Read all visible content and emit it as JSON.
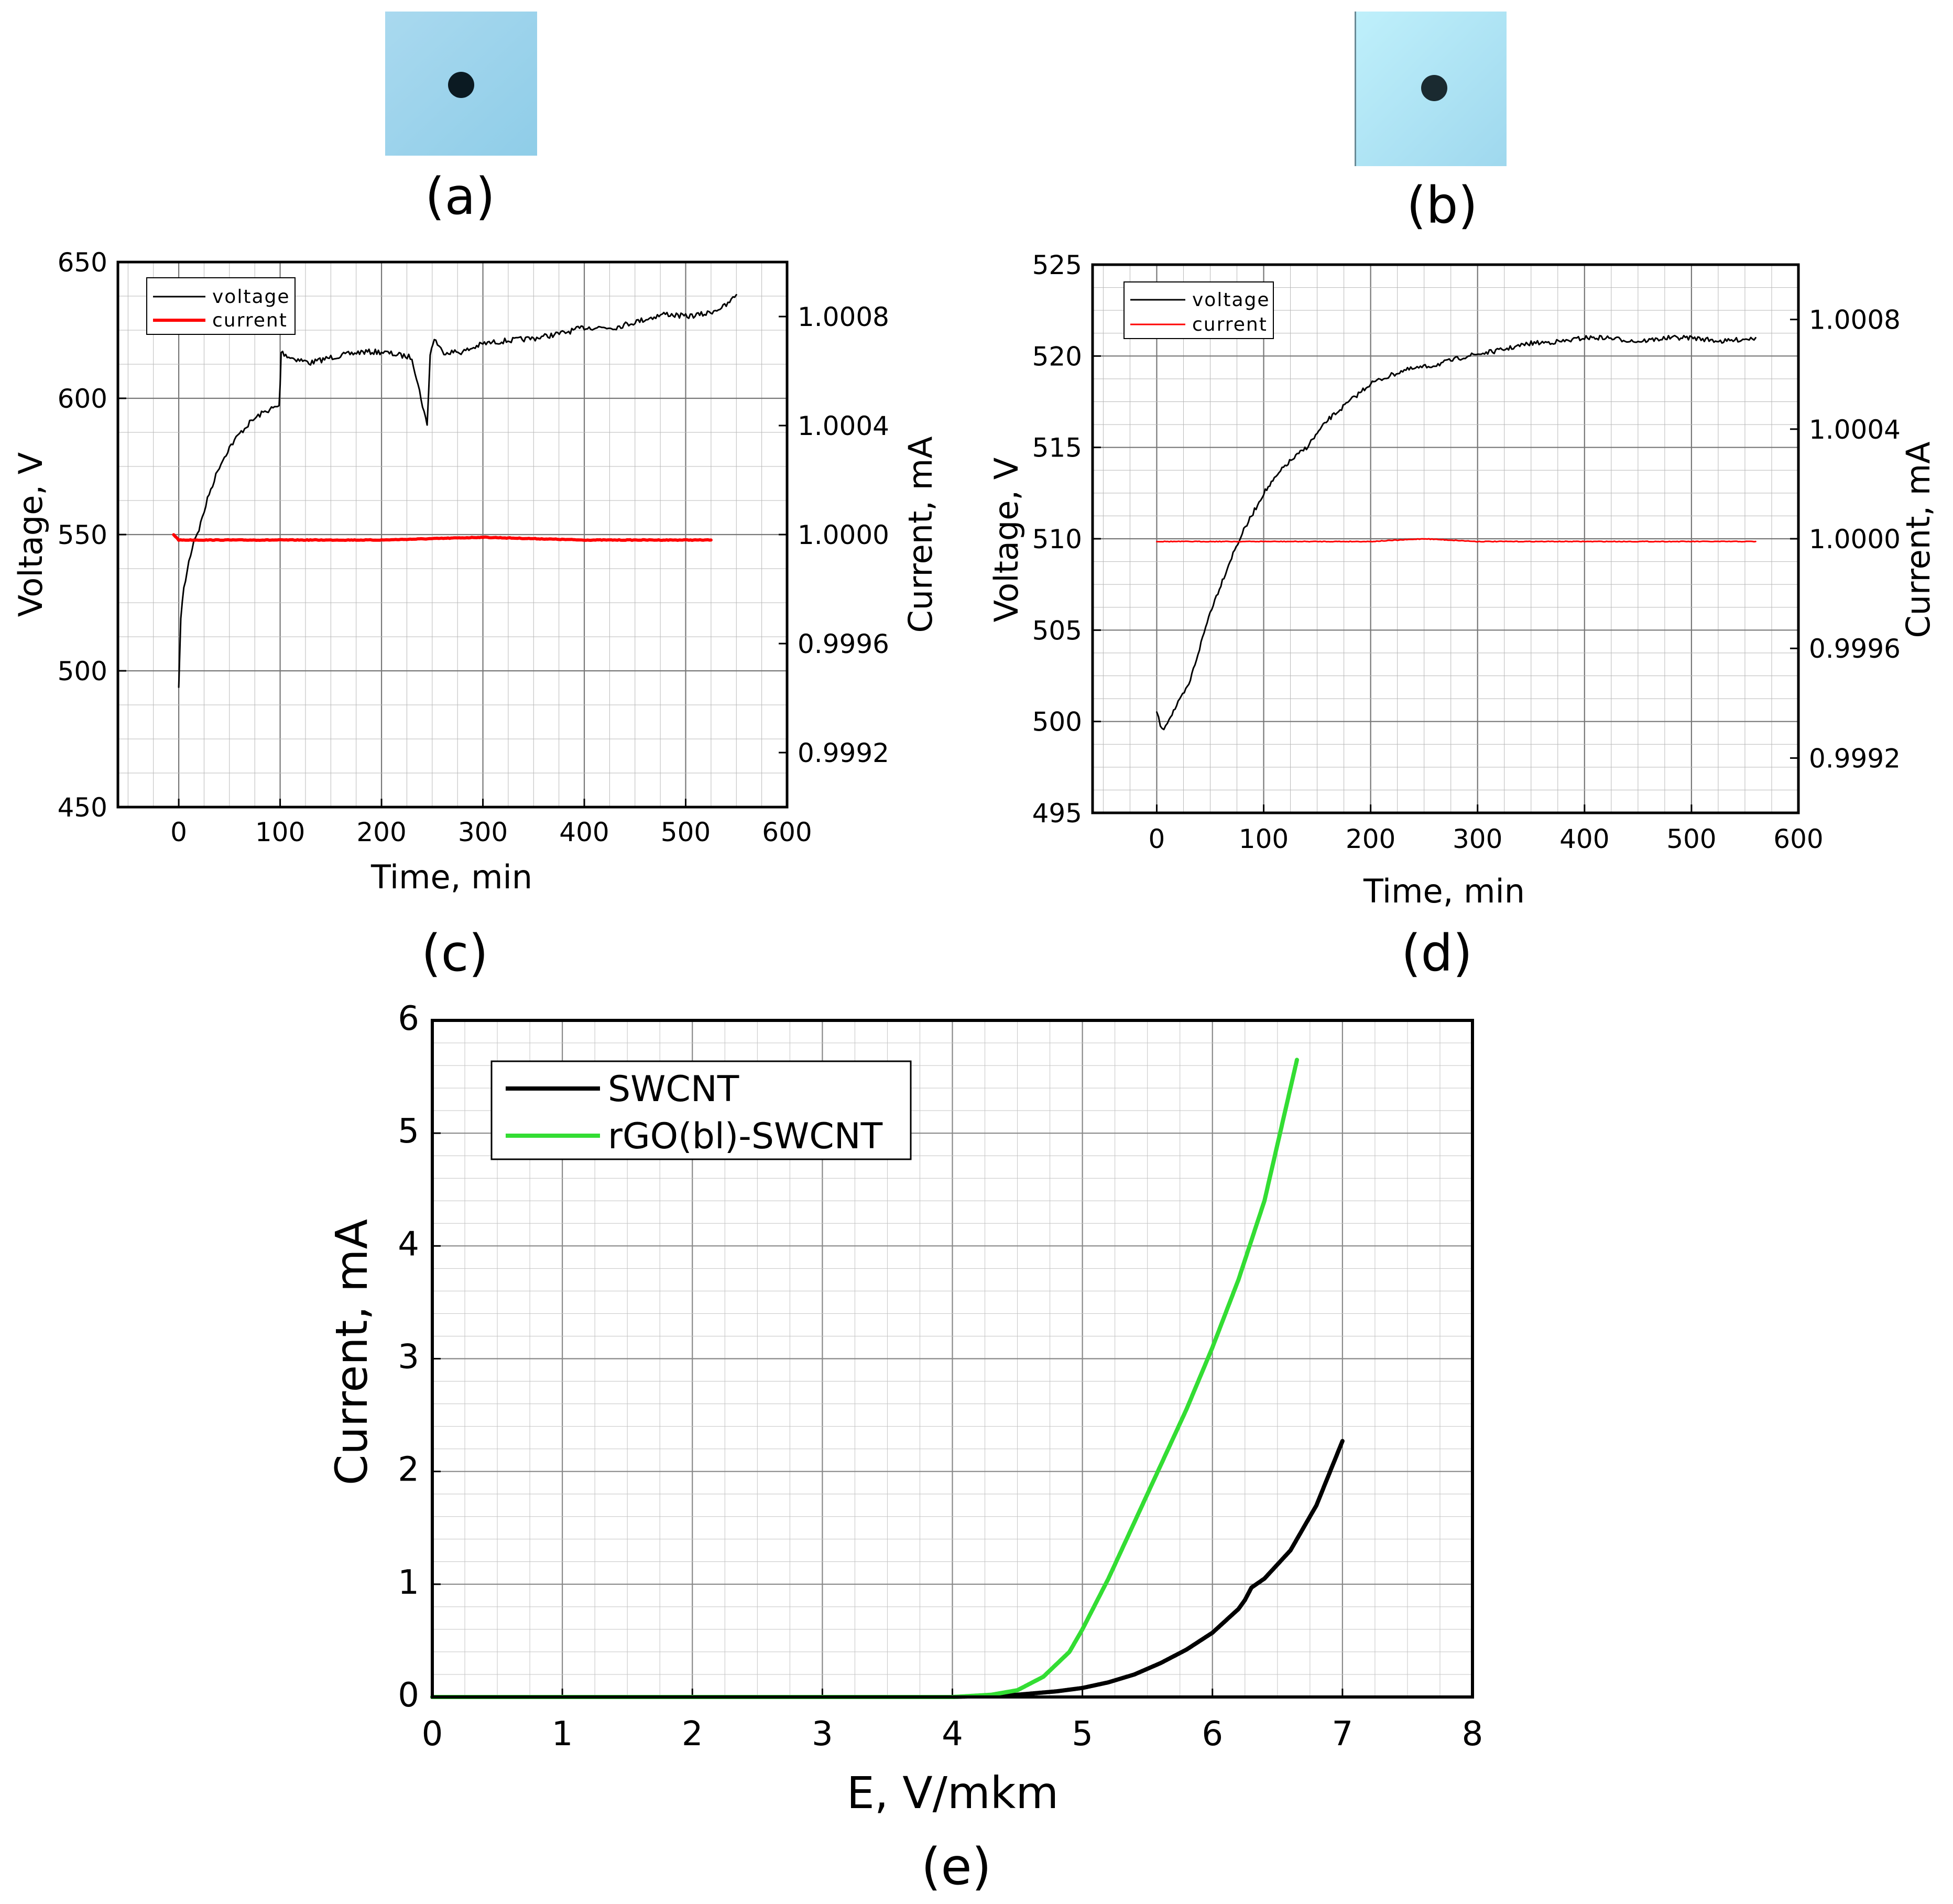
{
  "photos": [
    {
      "caption": "(a)",
      "sample": "sample-photo-a"
    },
    {
      "caption": "(b)",
      "sample": "sample-photo-b"
    }
  ],
  "chart_data": [
    {
      "id": "c",
      "caption": "(c)",
      "type": "line",
      "xlabel": "Time, min",
      "ylabel": "Voltage, V",
      "y2label": "Current, mA",
      "xlim": [
        -60,
        600
      ],
      "ylim": [
        450,
        650
      ],
      "y2lim": [
        0.999,
        1.001
      ],
      "xticks": [
        0,
        100,
        200,
        300,
        400,
        500,
        600
      ],
      "yticks": [
        450,
        500,
        550,
        600,
        650
      ],
      "y2ticks": [
        "0.9992",
        "0.9996",
        "1.0000",
        "1.0004",
        "1.0008"
      ],
      "grid": true,
      "legend_position": "top-left",
      "series": [
        {
          "name": "voltage",
          "axis": "left",
          "color": "#000000",
          "x": [
            0,
            2,
            5,
            10,
            15,
            20,
            30,
            40,
            50,
            60,
            70,
            80,
            90,
            99,
            100,
            101,
            110,
            130,
            150,
            180,
            200,
            230,
            245,
            248,
            252,
            260,
            280,
            300,
            320,
            350,
            380,
            400,
            430,
            450,
            480,
            500,
            520,
            540,
            550
          ],
          "y": [
            493,
            520,
            530,
            540,
            548,
            552,
            565,
            575,
            582,
            587,
            591,
            594,
            596,
            597,
            605,
            617,
            615,
            613,
            615,
            617,
            617,
            615,
            590,
            616,
            622,
            617,
            617,
            620,
            621,
            622,
            624,
            626,
            626,
            628,
            631,
            630,
            631,
            634,
            638
          ]
        },
        {
          "name": "current",
          "axis": "right",
          "color": "#ff0000",
          "x": [
            -5,
            0,
            10,
            100,
            200,
            300,
            400,
            500,
            525
          ],
          "y": [
            1.0,
            0.99998,
            0.99998,
            0.99998,
            0.99998,
            0.99999,
            0.99998,
            0.99998,
            0.99998
          ]
        }
      ]
    },
    {
      "id": "d",
      "caption": "(d)",
      "type": "line",
      "xlabel": "Time, min",
      "ylabel": "Voltage, V",
      "y2label": "Current, mA",
      "xlim": [
        -60,
        600
      ],
      "ylim": [
        495,
        525
      ],
      "y2lim": [
        0.999,
        1.001
      ],
      "xticks": [
        0,
        100,
        200,
        300,
        400,
        500,
        600
      ],
      "yticks": [
        495,
        500,
        505,
        510,
        515,
        520,
        525
      ],
      "y2ticks": [
        "0.9992",
        "0.9996",
        "1.0000",
        "1.0004",
        "1.0008"
      ],
      "grid": true,
      "legend_position": "top-left",
      "series": [
        {
          "name": "voltage",
          "axis": "left",
          "color": "#000000",
          "x": [
            0,
            5,
            10,
            20,
            30,
            40,
            50,
            60,
            70,
            80,
            100,
            120,
            140,
            160,
            180,
            200,
            230,
            260,
            290,
            320,
            350,
            380,
            400,
            420,
            450,
            480,
            500,
            530,
            560
          ],
          "y": [
            500.5,
            499.5,
            500,
            501,
            502,
            504,
            506,
            507.5,
            509,
            510.3,
            512.5,
            514,
            515,
            516.5,
            517.5,
            518.5,
            519.2,
            519.5,
            520,
            520.3,
            520.7,
            520.8,
            521,
            521,
            520.8,
            521,
            521,
            520.8,
            521
          ]
        },
        {
          "name": "current",
          "axis": "right",
          "color": "#ff0000",
          "x": [
            0,
            100,
            200,
            250,
            300,
            400,
            500,
            560
          ],
          "y": [
            0.99999,
            0.99999,
            0.99999,
            1.0,
            0.99999,
            0.99999,
            0.99999,
            0.99999
          ]
        }
      ]
    },
    {
      "id": "e",
      "caption": "(e)",
      "type": "line",
      "xlabel": "E, V/mkm",
      "ylabel": "Current, mA",
      "xlim": [
        0,
        8
      ],
      "ylim": [
        0,
        6
      ],
      "xticks": [
        0,
        1,
        2,
        3,
        4,
        5,
        6,
        7,
        8
      ],
      "yticks": [
        0,
        1,
        2,
        3,
        4,
        5,
        6
      ],
      "grid": true,
      "legend_position": "top-left",
      "series": [
        {
          "name": "SWCNT",
          "color": "#000000",
          "x": [
            0,
            4.0,
            4.5,
            4.8,
            5.0,
            5.2,
            5.4,
            5.6,
            5.8,
            6.0,
            6.2,
            6.25,
            6.3,
            6.4,
            6.6,
            6.8,
            7.0
          ],
          "y": [
            0,
            0,
            0.02,
            0.05,
            0.08,
            0.13,
            0.2,
            0.3,
            0.42,
            0.57,
            0.78,
            0.86,
            0.97,
            1.05,
            1.3,
            1.7,
            2.27
          ]
        },
        {
          "name": "rGO(bl)-SWCNT",
          "color": "#33dd33",
          "x": [
            0,
            4.0,
            4.3,
            4.5,
            4.7,
            4.9,
            5.0,
            5.2,
            5.4,
            5.6,
            5.8,
            6.0,
            6.2,
            6.4,
            6.5,
            6.6,
            6.65
          ],
          "y": [
            0,
            0,
            0.02,
            0.06,
            0.18,
            0.4,
            0.6,
            1.05,
            1.55,
            2.05,
            2.55,
            3.1,
            3.7,
            4.4,
            4.9,
            5.4,
            5.65
          ]
        }
      ]
    }
  ]
}
